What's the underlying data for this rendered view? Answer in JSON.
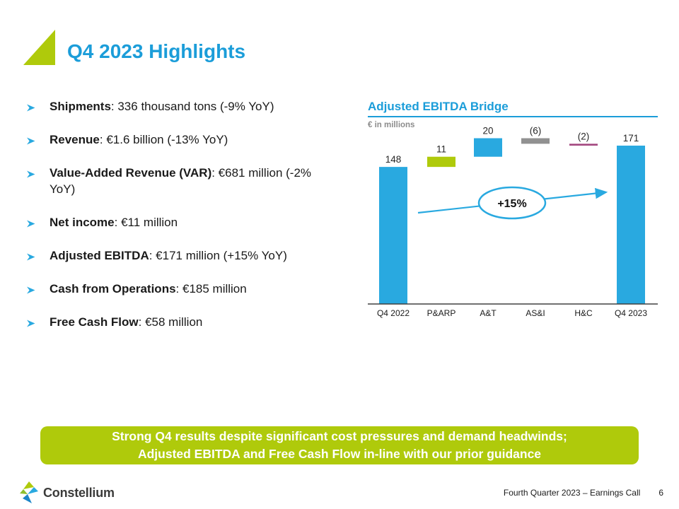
{
  "slide": {
    "title": "Q4 2023 Highlights",
    "bullets": [
      {
        "label": "Shipments",
        "rest": ": 336 thousand tons (-9% YoY)"
      },
      {
        "label": "Revenue",
        "rest": ": €1.6 billion (-13% YoY)"
      },
      {
        "label": "Value-Added Revenue (VAR)",
        "rest": ": €681 million (-2% YoY)"
      },
      {
        "label": "Net income",
        "rest": ": €11 million"
      },
      {
        "label": "Adjusted EBITDA",
        "rest": ": €171 million (+15% YoY)"
      },
      {
        "label": "Cash from Operations",
        "rest": ": €185 million"
      },
      {
        "label": "Free Cash Flow",
        "rest": ": €58 million"
      }
    ],
    "banner": {
      "line1": "Strong Q4 results despite significant cost pressures and demand headwinds;",
      "line2": "Adjusted EBITDA and Free Cash Flow in-line with our prior guidance"
    },
    "footer": {
      "brand": "Constellium",
      "deck_title": "Fourth Quarter 2023 – Earnings Call",
      "page_number": "6"
    }
  },
  "chart_data": {
    "type": "bar",
    "subtype": "waterfall",
    "title": "Adjusted EBITDA Bridge",
    "unit_label": "€ in millions",
    "categories": [
      "Q4 2022",
      "P&ARP",
      "A&T",
      "AS&I",
      "H&C",
      "Q4 2023"
    ],
    "steps": [
      {
        "label": "Q4 2022",
        "value": 148,
        "display": "148",
        "kind": "total",
        "color": "#29A9E0"
      },
      {
        "label": "P&ARP",
        "value": 11,
        "display": "11",
        "kind": "delta",
        "color": "#AFCA0B"
      },
      {
        "label": "A&T",
        "value": 20,
        "display": "20",
        "kind": "delta",
        "color": "#29A9E0"
      },
      {
        "label": "AS&I",
        "value": -6,
        "display": "(6)",
        "kind": "delta",
        "color": "#919191"
      },
      {
        "label": "H&C",
        "value": -2,
        "display": "(2)",
        "kind": "delta",
        "color": "#A3477F"
      },
      {
        "label": "Q4 2023",
        "value": 171,
        "display": "171",
        "kind": "total",
        "color": "#29A9E0"
      }
    ],
    "annotation": {
      "text": "+15%"
    },
    "ylim": [
      0,
      200
    ],
    "grid": false,
    "legend": false
  },
  "colors": {
    "accent_blue": "#1B9DD9",
    "bar_blue": "#29A9E0",
    "lime_green": "#AFCA0B",
    "gray_bar": "#919191",
    "purple": "#A3477F",
    "axis": "#404040",
    "muted_text": "#8C8C8C"
  }
}
